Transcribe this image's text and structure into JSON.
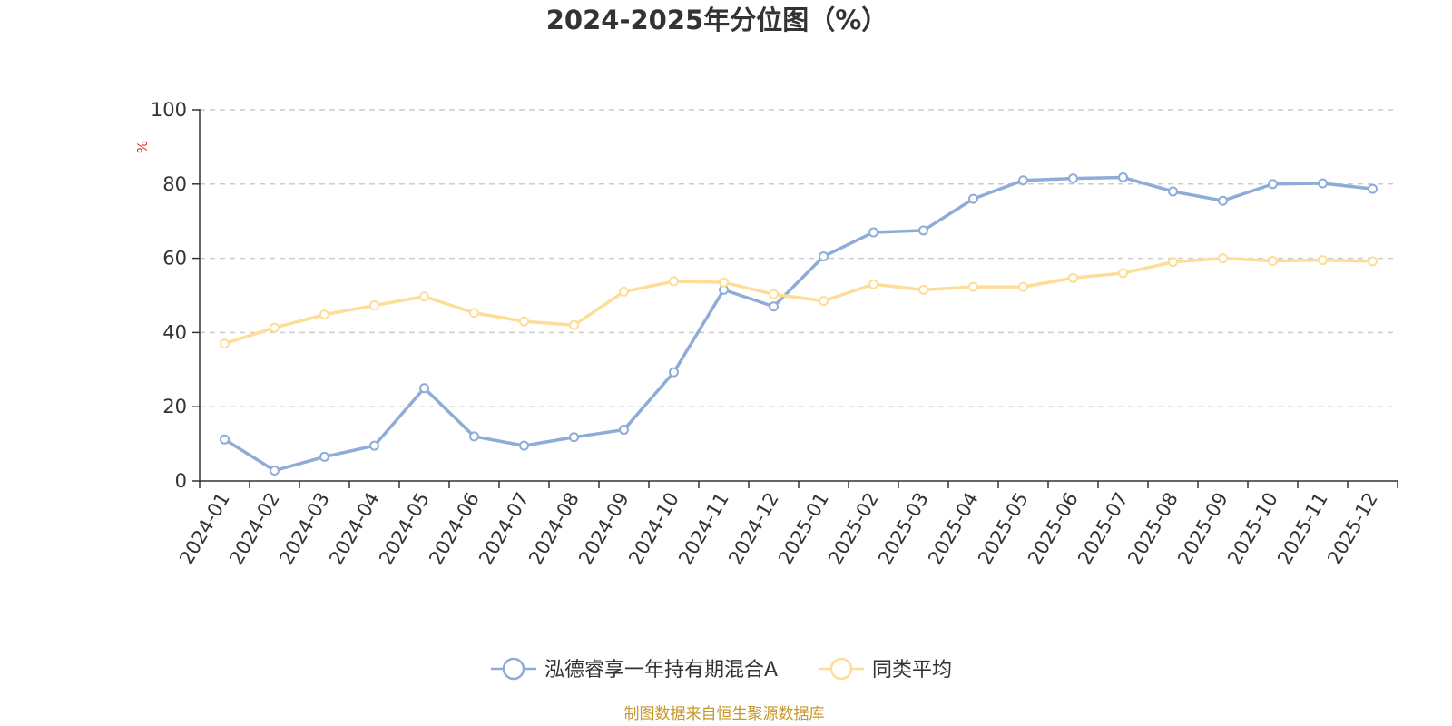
{
  "chart_data": {
    "type": "line",
    "title": "2024-2025年分位图（%）",
    "ylabel": "%",
    "xlabel": "",
    "ylim": [
      0,
      100
    ],
    "yticks": [
      0,
      20,
      40,
      60,
      80,
      100
    ],
    "grid": true,
    "legend_position": "bottom",
    "categories": [
      "2024-01",
      "2024-02",
      "2024-03",
      "2024-04",
      "2024-05",
      "2024-06",
      "2024-07",
      "2024-08",
      "2024-09",
      "2024-10",
      "2024-11",
      "2024-12",
      "2025-01",
      "2025-02",
      "2025-03",
      "2025-04",
      "2025-05",
      "2025-06",
      "2025-07",
      "2025-08",
      "2025-09",
      "2025-10",
      "2025-11",
      "2025-12"
    ],
    "series": [
      {
        "name": "泓德睿享一年持有期混合A",
        "color": "#8eacd8",
        "values": [
          11.2,
          2.8,
          6.5,
          9.5,
          25.0,
          12.0,
          9.5,
          11.8,
          13.8,
          29.3,
          51.5,
          47.0,
          60.5,
          67.0,
          67.5,
          76.0,
          81.0,
          81.5,
          81.8,
          78.0,
          75.5,
          80.0,
          80.2,
          78.7
        ]
      },
      {
        "name": "同类平均",
        "color": "#fddd98",
        "values": [
          37.0,
          41.3,
          44.8,
          47.3,
          49.7,
          45.3,
          43.0,
          42.0,
          51.0,
          53.8,
          53.5,
          50.3,
          48.5,
          53.0,
          51.5,
          52.3,
          52.3,
          54.7,
          56.0,
          59.0,
          60.0,
          59.3,
          59.5,
          59.2
        ]
      }
    ]
  },
  "source_text": "制图数据来自恒生聚源数据库",
  "colors": {
    "axis": "#333333",
    "grid": "#cccccc",
    "unit": "#e03030",
    "source": "#c8962a"
  }
}
